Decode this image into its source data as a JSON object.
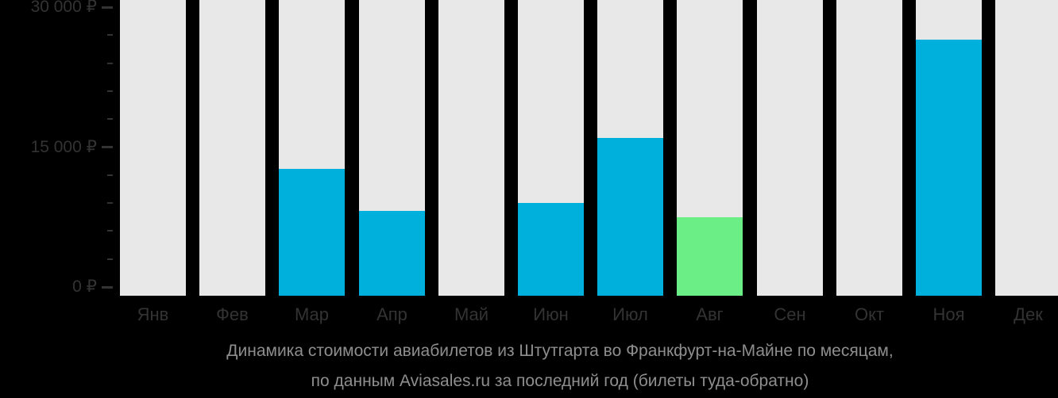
{
  "chart_data": {
    "type": "bar",
    "title_line1": "Динамика стоимости авиабилетов из Штутгарта во Франкфурт-на-Майне по месяцам,",
    "title_line2": "по данным Aviasales.ru за последний год (билеты туда-обратно)",
    "categories": [
      "Янв",
      "Фев",
      "Мар",
      "Апр",
      "Май",
      "Июн",
      "Июл",
      "Авг",
      "Сен",
      "Окт",
      "Ноя",
      "Дек"
    ],
    "values": [
      null,
      null,
      12700,
      8200,
      null,
      9000,
      16000,
      7500,
      null,
      null,
      26500,
      null
    ],
    "highlight_index": 7,
    "ylim": [
      0,
      30000
    ],
    "minor_tick_step": 3000,
    "y_major_ticks": [
      {
        "value": 0,
        "label": "0 ₽"
      },
      {
        "value": 15000,
        "label": "15 000 ₽"
      },
      {
        "value": 30000,
        "label": "30 000 ₽"
      }
    ],
    "legend": "none",
    "grid": "off",
    "colors": {
      "bar": "#00B0DC",
      "highlight_bar": "#6CEE86",
      "track": "#E8E8E8",
      "axis_text": "#333333",
      "tick": "#333333",
      "title_text": "#8E8E8E",
      "background": "#000000"
    }
  }
}
